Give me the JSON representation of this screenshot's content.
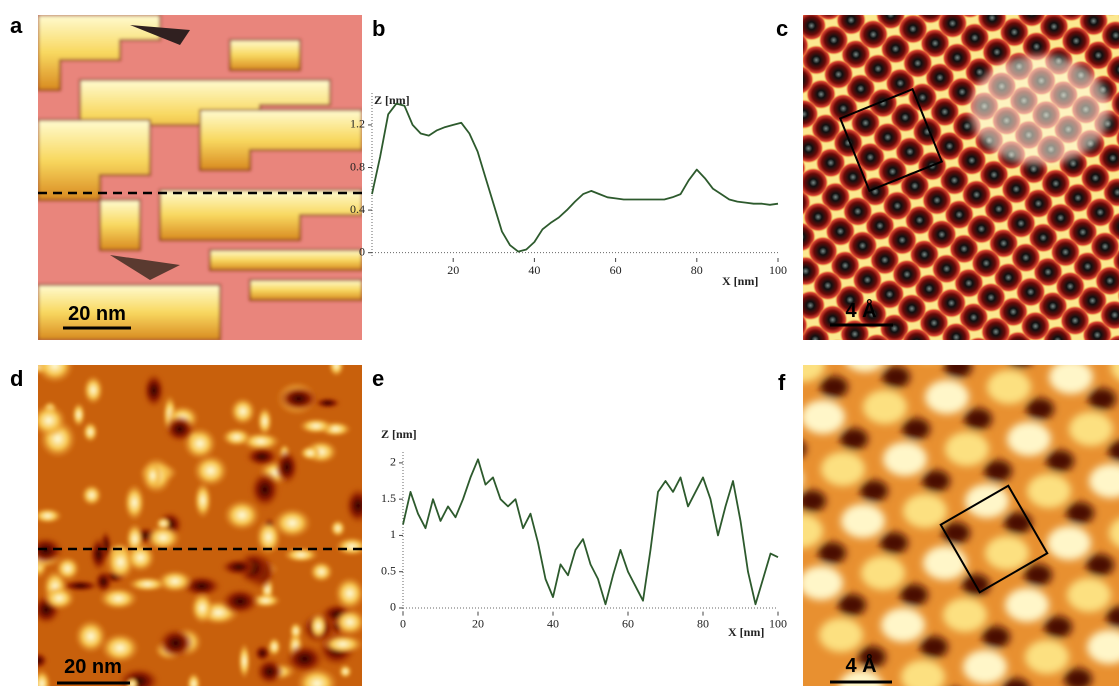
{
  "images": [
    {
      "label": "a",
      "scale_bar": "20 nm"
    },
    {
      "label": "c",
      "scale_bar": "4 Å"
    },
    {
      "label": "d",
      "scale_bar": "20 nm"
    },
    {
      "label": "f",
      "scale_bar": "4 Å"
    }
  ],
  "chart_data": [
    {
      "type": "line",
      "label": "b",
      "ylabel": "Z [nm]",
      "xlabel": "X [nm]",
      "color": "#2d5a2d",
      "x": [
        0,
        2,
        4,
        6,
        8,
        10,
        12,
        14,
        16,
        18,
        20,
        22,
        24,
        26,
        28,
        30,
        32,
        34,
        36,
        38,
        40,
        42,
        44,
        46,
        48,
        50,
        52,
        54,
        56,
        58,
        60,
        62,
        64,
        66,
        68,
        70,
        72,
        74,
        76,
        78,
        80,
        82,
        84,
        86,
        88,
        90,
        92,
        94,
        96,
        98,
        100
      ],
      "values": [
        0.55,
        0.9,
        1.3,
        1.4,
        1.38,
        1.2,
        1.12,
        1.1,
        1.15,
        1.18,
        1.2,
        1.22,
        1.12,
        0.95,
        0.7,
        0.45,
        0.2,
        0.07,
        0.01,
        0.03,
        0.1,
        0.22,
        0.28,
        0.33,
        0.4,
        0.48,
        0.55,
        0.58,
        0.55,
        0.52,
        0.51,
        0.5,
        0.5,
        0.5,
        0.5,
        0.5,
        0.5,
        0.52,
        0.55,
        0.68,
        0.78,
        0.7,
        0.6,
        0.55,
        0.5,
        0.48,
        0.47,
        0.46,
        0.46,
        0.45,
        0.46
      ],
      "xlim": [
        0,
        100
      ],
      "ylim": [
        -0.05,
        1.5
      ],
      "xticks": [
        20,
        40,
        60,
        80,
        100
      ],
      "yticks": [
        0,
        0.4,
        0.8,
        1.2
      ]
    },
    {
      "type": "line",
      "label": "e",
      "ylabel": "Z [nm]",
      "xlabel": "X [nm]",
      "color": "#2d5a2d",
      "x": [
        0,
        2,
        4,
        6,
        8,
        10,
        12,
        14,
        16,
        18,
        20,
        22,
        24,
        26,
        28,
        30,
        32,
        34,
        36,
        38,
        40,
        42,
        44,
        46,
        48,
        50,
        52,
        54,
        56,
        58,
        60,
        62,
        64,
        66,
        68,
        70,
        72,
        74,
        76,
        78,
        80,
        82,
        84,
        86,
        88,
        90,
        92,
        94,
        96,
        98,
        100
      ],
      "values": [
        1.15,
        1.6,
        1.3,
        1.1,
        1.5,
        1.2,
        1.4,
        1.25,
        1.5,
        1.8,
        2.05,
        1.7,
        1.8,
        1.5,
        1.4,
        1.5,
        1.1,
        1.3,
        0.9,
        0.4,
        0.15,
        0.6,
        0.45,
        0.8,
        0.95,
        0.6,
        0.4,
        0.05,
        0.45,
        0.8,
        0.5,
        0.3,
        0.1,
        0.8,
        1.6,
        1.75,
        1.6,
        1.8,
        1.4,
        1.6,
        1.8,
        1.5,
        1.0,
        1.4,
        1.75,
        1.2,
        0.5,
        0.05,
        0.4,
        0.75,
        0.7
      ],
      "xlim": [
        0,
        100
      ],
      "ylim": [
        -0.05,
        2.15
      ],
      "xticks": [
        0,
        20,
        40,
        60,
        80,
        100
      ],
      "yticks": [
        0,
        0.5,
        1,
        1.5,
        2
      ]
    }
  ]
}
